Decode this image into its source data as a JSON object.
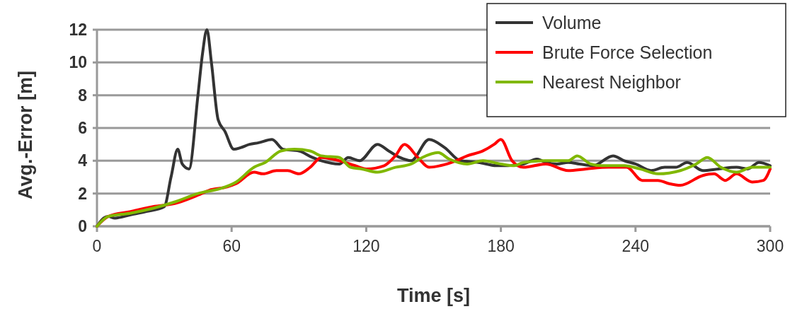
{
  "chart_data": {
    "type": "line",
    "xlabel": "Time [s]",
    "ylabel": "Avg.-Error [m]",
    "xlim": [
      0,
      300
    ],
    "xticks": [
      0,
      60,
      120,
      180,
      240,
      300
    ],
    "ylim": [
      0,
      12
    ],
    "yticks": [
      0,
      2,
      4,
      6,
      8,
      10,
      12
    ],
    "grid": "y",
    "legend": "top right",
    "marker": "none",
    "line_style": "solid",
    "series": [
      {
        "name": "Volume",
        "color": "#333333",
        "x": [
          0,
          3,
          5,
          8,
          15,
          22,
          30,
          33,
          36,
          38,
          41,
          45,
          47,
          49,
          51,
          54,
          57,
          61,
          64,
          68,
          72,
          78,
          83,
          90,
          96,
          100,
          108,
          112,
          117,
          125,
          130,
          135,
          140,
          148,
          155,
          162,
          170,
          178,
          183,
          190,
          196,
          200,
          205,
          210,
          215,
          221,
          230,
          235,
          240,
          247,
          253,
          258,
          263,
          270,
          277,
          285,
          290,
          295,
          300
        ],
        "values": [
          0,
          0.5,
          0.6,
          0.5,
          0.7,
          0.9,
          1.2,
          3,
          4.7,
          3.8,
          3.5,
          8,
          10.5,
          12,
          10,
          6.5,
          5.8,
          4.7,
          4.8,
          5,
          5.1,
          5.3,
          4.7,
          4.6,
          4.2,
          4,
          3.8,
          4.2,
          4,
          5,
          4.6,
          4.2,
          4,
          5.3,
          4.8,
          4,
          3.9,
          3.7,
          3.7,
          3.8,
          4.1,
          3.9,
          3.8,
          3.9,
          3.8,
          3.7,
          4.3,
          4,
          3.8,
          3.4,
          3.6,
          3.6,
          3.9,
          3.4,
          3.5,
          3.6,
          3.5,
          3.9,
          3.7
        ]
      },
      {
        "name": "Brute Force Selection",
        "color": "#ff0000",
        "x": [
          0,
          5,
          15,
          25,
          35,
          45,
          50,
          58,
          62,
          70,
          74,
          80,
          85,
          90,
          95,
          100,
          108,
          115,
          120,
          128,
          133,
          137,
          143,
          148,
          153,
          160,
          165,
          172,
          177,
          180,
          185,
          190,
          200,
          210,
          218,
          228,
          236,
          243,
          250,
          255,
          260,
          270,
          275,
          280,
          285,
          292,
          297,
          300
        ],
        "values": [
          0,
          0.6,
          0.9,
          1.2,
          1.4,
          1.9,
          2.2,
          2.4,
          2.6,
          3.3,
          3.2,
          3.4,
          3.4,
          3.2,
          3.6,
          4.2,
          4,
          3.7,
          3.5,
          3.7,
          4.3,
          5,
          4.2,
          3.6,
          3.7,
          4,
          4.3,
          4.6,
          5,
          5.3,
          4,
          3.6,
          3.8,
          3.4,
          3.5,
          3.6,
          3.6,
          2.8,
          2.8,
          2.6,
          2.5,
          3.1,
          3.2,
          2.8,
          3.2,
          2.7,
          2.8,
          3.5
        ]
      },
      {
        "name": "Nearest Neighbor",
        "color": "#80b800",
        "x": [
          0,
          5,
          15,
          25,
          35,
          45,
          55,
          62,
          70,
          75,
          82,
          88,
          95,
          100,
          108,
          113,
          118,
          125,
          133,
          140,
          145,
          152,
          157,
          165,
          172,
          180,
          186,
          190,
          200,
          210,
          214,
          220,
          225,
          235,
          242,
          250,
          260,
          267,
          272,
          278,
          285,
          292,
          300
        ],
        "values": [
          0,
          0.6,
          0.8,
          1.1,
          1.5,
          2,
          2.3,
          2.7,
          3.6,
          3.9,
          4.6,
          4.7,
          4.6,
          4.3,
          4.2,
          3.6,
          3.5,
          3.3,
          3.6,
          3.8,
          4.2,
          4.5,
          4.1,
          3.8,
          4,
          3.8,
          3.7,
          3.9,
          4,
          4,
          4.3,
          3.8,
          3.7,
          3.7,
          3.5,
          3.2,
          3.4,
          3.8,
          4.2,
          3.6,
          3.3,
          3.6,
          3.6
        ]
      }
    ]
  }
}
